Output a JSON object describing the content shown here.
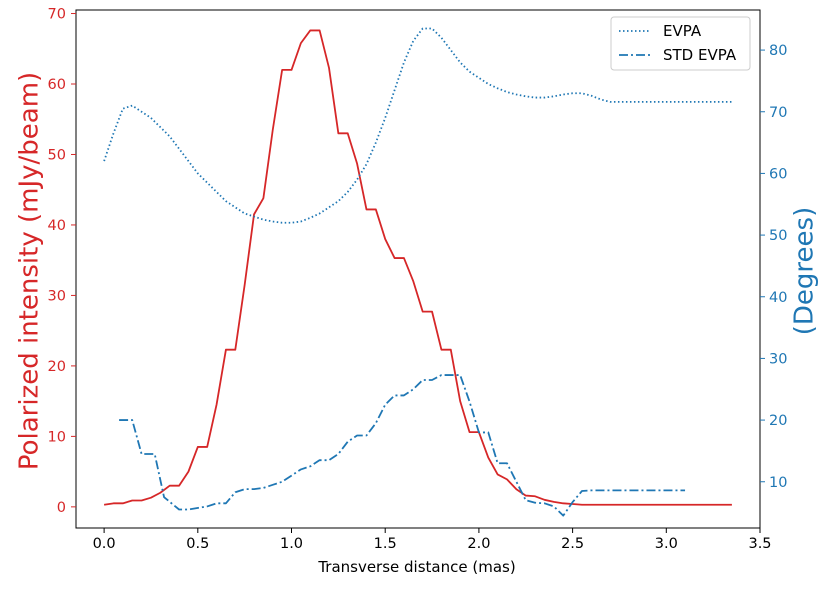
{
  "chart_data": {
    "type": "line",
    "xlabel": "Transverse distance (mas)",
    "ylabel_left": "Polarized intensity (mJy/beam)",
    "ylabel_right": "(Degrees)",
    "xlim": [
      -0.15,
      3.5
    ],
    "ylim_left": [
      -3,
      70.5
    ],
    "ylim_right": [
      2.5,
      86.5
    ],
    "xticks": [
      0.0,
      0.5,
      1.0,
      1.5,
      2.0,
      2.5,
      3.0,
      3.5
    ],
    "xtick_labels": [
      "0.0",
      "0.5",
      "1.0",
      "1.5",
      "2.0",
      "2.5",
      "3.0",
      "3.5"
    ],
    "yticks_left": [
      0,
      10,
      20,
      30,
      40,
      50,
      60,
      70
    ],
    "ytick_labels_left": [
      "0",
      "10",
      "20",
      "30",
      "40",
      "50",
      "60",
      "70"
    ],
    "yticks_right": [
      10,
      20,
      30,
      40,
      50,
      60,
      70,
      80
    ],
    "ytick_labels_right": [
      "10",
      "20",
      "30",
      "40",
      "50",
      "60",
      "70",
      "80"
    ],
    "colors": {
      "left_axis": "#d62728",
      "right_axis": "#1f77b4"
    },
    "grid": false,
    "legend": {
      "placement": "top-right",
      "entries": [
        "EVPA",
        "STD EVPA"
      ]
    },
    "series": [
      {
        "axis": "left",
        "color": "#d62728",
        "style": "solid",
        "x": [
          0.0,
          0.05,
          0.1,
          0.15,
          0.2,
          0.25,
          0.3,
          0.35,
          0.4,
          0.45,
          0.5,
          0.55,
          0.6,
          0.65,
          0.7,
          0.75,
          0.8,
          0.85,
          0.9,
          0.95,
          1.0,
          1.05,
          1.1,
          1.15,
          1.2,
          1.25,
          1.3,
          1.35,
          1.4,
          1.45,
          1.5,
          1.55,
          1.6,
          1.65,
          1.7,
          1.75,
          1.8,
          1.85,
          1.9,
          1.95,
          2.0,
          2.05,
          2.1,
          2.15,
          2.2,
          2.25,
          2.3,
          2.35,
          2.4,
          2.45,
          2.5,
          2.55,
          2.6,
          2.65,
          2.7,
          2.75,
          2.8,
          2.85,
          2.9,
          2.95,
          3.0,
          3.05,
          3.1,
          3.15,
          3.2,
          3.25,
          3.3,
          3.35
        ],
        "values": [
          0.3,
          0.5,
          0.5,
          0.9,
          0.9,
          1.3,
          2.0,
          3.0,
          3.0,
          5.0,
          8.5,
          8.5,
          14.5,
          22.3,
          22.3,
          31.5,
          41.5,
          43.8,
          53.5,
          62.0,
          62.0,
          65.8,
          67.6,
          67.6,
          62.3,
          53.0,
          53.0,
          48.7,
          42.2,
          42.2,
          38.0,
          35.3,
          35.3,
          32.0,
          27.7,
          27.7,
          22.3,
          22.3,
          15.0,
          10.6,
          10.6,
          7.0,
          4.6,
          3.9,
          2.5,
          1.6,
          1.5,
          1.0,
          0.7,
          0.5,
          0.4,
          0.3,
          0.3,
          0.3,
          0.3,
          0.3,
          0.3,
          0.3,
          0.3,
          0.3,
          0.3,
          0.3,
          0.3,
          0.3,
          0.3,
          0.3,
          0.3,
          0.3
        ]
      },
      {
        "name": "EVPA",
        "axis": "right",
        "color": "#1f77b4",
        "style": "dotted",
        "x": [
          0.0,
          0.05,
          0.1,
          0.15,
          0.2,
          0.25,
          0.3,
          0.35,
          0.4,
          0.45,
          0.5,
          0.55,
          0.6,
          0.65,
          0.7,
          0.75,
          0.8,
          0.85,
          0.9,
          0.95,
          1.0,
          1.05,
          1.1,
          1.15,
          1.2,
          1.25,
          1.3,
          1.35,
          1.4,
          1.45,
          1.5,
          1.55,
          1.6,
          1.65,
          1.7,
          1.75,
          1.8,
          1.85,
          1.9,
          1.95,
          2.0,
          2.05,
          2.1,
          2.15,
          2.2,
          2.25,
          2.3,
          2.35,
          2.4,
          2.45,
          2.5,
          2.55,
          2.6,
          2.65,
          2.7,
          2.75,
          2.8,
          2.85,
          2.9,
          2.95,
          3.0,
          3.05,
          3.1,
          3.15,
          3.2,
          3.25,
          3.3,
          3.35
        ],
        "values": [
          62.0,
          66.5,
          70.5,
          71.0,
          70.0,
          69.0,
          67.5,
          66.0,
          64.0,
          62.0,
          60.0,
          58.5,
          57.0,
          55.5,
          54.5,
          53.5,
          53.0,
          52.5,
          52.2,
          52.0,
          52.0,
          52.2,
          52.8,
          53.5,
          54.5,
          55.5,
          57.0,
          59.0,
          61.5,
          65.0,
          69.0,
          73.5,
          78.0,
          81.5,
          83.5,
          83.5,
          82.0,
          80.0,
          78.0,
          76.5,
          75.5,
          74.5,
          73.8,
          73.2,
          72.8,
          72.5,
          72.3,
          72.3,
          72.5,
          72.8,
          73.0,
          73.0,
          72.6,
          72.0,
          71.6,
          71.6,
          71.6,
          71.6,
          71.6,
          71.6,
          71.6,
          71.6,
          71.6,
          71.6,
          71.6,
          71.6,
          71.6,
          71.6
        ]
      },
      {
        "name": "STD EVPA",
        "axis": "right",
        "color": "#1f77b4",
        "style": "dashdot",
        "x": [
          0.08,
          0.15,
          0.2,
          0.27,
          0.32,
          0.4,
          0.45,
          0.55,
          0.6,
          0.65,
          0.7,
          0.75,
          0.8,
          0.85,
          0.9,
          0.95,
          1.0,
          1.05,
          1.1,
          1.15,
          1.2,
          1.25,
          1.3,
          1.35,
          1.4,
          1.45,
          1.5,
          1.55,
          1.6,
          1.65,
          1.7,
          1.75,
          1.8,
          1.85,
          1.9,
          1.95,
          2.0,
          2.05,
          2.1,
          2.15,
          2.2,
          2.25,
          2.3,
          2.35,
          2.4,
          2.45,
          2.5,
          2.55,
          2.6,
          2.65,
          2.7,
          2.75,
          2.8,
          2.85,
          2.9,
          2.95,
          3.0,
          3.05,
          3.1
        ],
        "values": [
          20.0,
          20.0,
          14.5,
          14.5,
          7.5,
          5.5,
          5.5,
          6.0,
          6.5,
          6.5,
          8.3,
          8.8,
          8.8,
          9.0,
          9.5,
          10.0,
          11.0,
          12.0,
          12.5,
          13.5,
          13.5,
          14.5,
          16.5,
          17.5,
          17.5,
          19.5,
          22.5,
          24.0,
          24.0,
          25.0,
          26.5,
          26.5,
          27.3,
          27.3,
          27.3,
          23.0,
          18.0,
          18.0,
          13.0,
          13.0,
          10.0,
          7.0,
          6.6,
          6.5,
          6.0,
          4.5,
          6.7,
          8.5,
          8.6,
          8.6,
          8.6,
          8.6,
          8.6,
          8.6,
          8.6,
          8.6,
          8.6,
          8.6,
          8.6
        ]
      }
    ]
  }
}
